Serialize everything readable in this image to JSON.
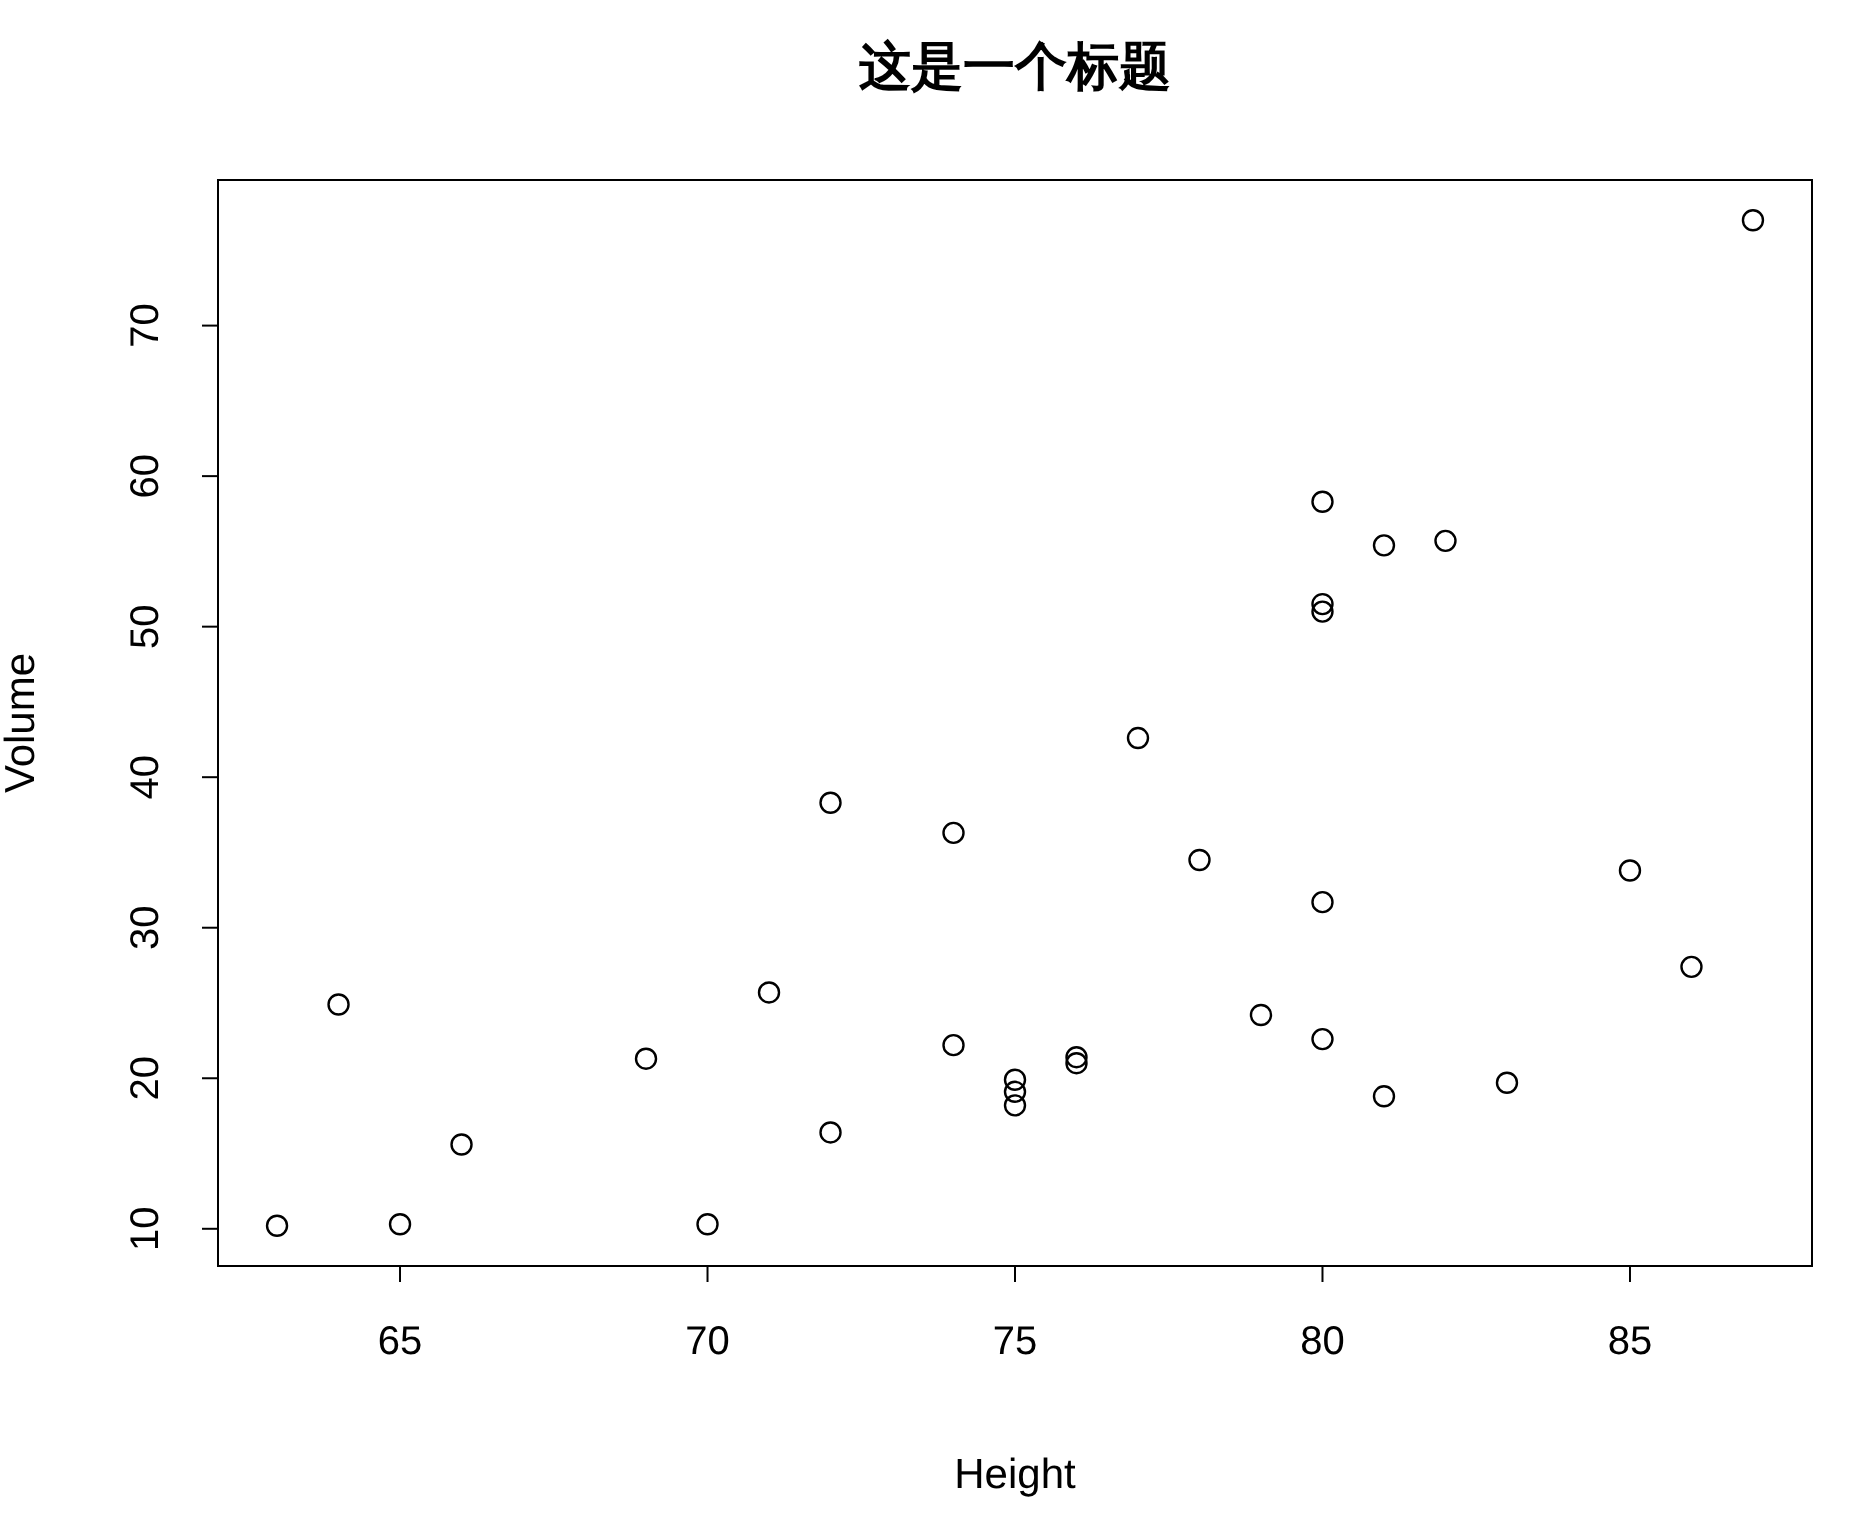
{
  "chart_data": {
    "type": "scatter",
    "title": "这是一个标题",
    "xlabel": "Height",
    "ylabel": "Volume",
    "x": [
      70,
      65,
      63,
      72,
      81,
      83,
      66,
      75,
      80,
      75,
      79,
      76,
      76,
      69,
      75,
      74,
      85,
      86,
      71,
      64,
      78,
      80,
      74,
      72,
      77,
      81,
      82,
      80,
      80,
      80,
      87
    ],
    "series": [
      {
        "color": "#000000",
        "values": [
          10.3,
          10.3,
          10.2,
          16.4,
          18.8,
          19.7,
          15.6,
          18.2,
          22.6,
          19.9,
          24.2,
          21.0,
          21.4,
          21.3,
          19.1,
          22.2,
          33.8,
          27.4,
          25.7,
          24.9,
          34.5,
          31.7,
          36.3,
          38.3,
          42.6,
          55.4,
          55.7,
          58.3,
          51.5,
          51.0,
          77.0
        ]
      }
    ],
    "xlim": [
      62.04,
      87.96
    ],
    "ylim": [
      7.528,
      79.672
    ],
    "xticks": [
      65,
      70,
      75,
      80,
      85
    ],
    "yticks": [
      10,
      20,
      30,
      40,
      50,
      60,
      70
    ],
    "marker": "circle"
  }
}
